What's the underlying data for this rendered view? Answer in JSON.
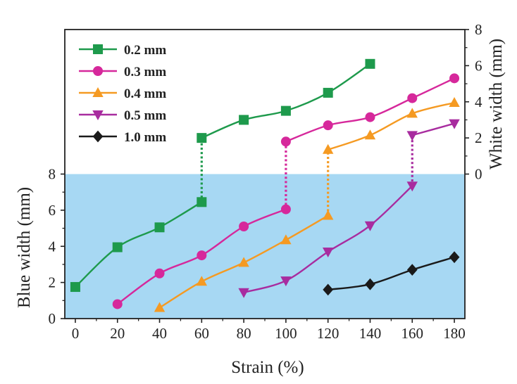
{
  "chart_data": {
    "type": "line",
    "xlabel": "Strain (%)",
    "ylabel_left": "Blue width (mm)",
    "ylabel_right": "White width (mm)",
    "xlim": [
      -5,
      185
    ],
    "ylim_left": [
      0,
      16
    ],
    "ylim_right": [
      -8,
      8
    ],
    "xticks": [
      0,
      20,
      40,
      60,
      80,
      100,
      120,
      140,
      160,
      180
    ],
    "yticks_left": [
      0,
      2,
      4,
      6,
      8
    ],
    "yticks_right": [
      0,
      2,
      4,
      6,
      8
    ],
    "blue_region_max": 8,
    "legend_position": "top-left",
    "series": [
      {
        "name": "0.2 mm",
        "color": "#1e9a4c",
        "marker": "square",
        "blue": {
          "x": [
            0,
            20,
            40,
            60
          ],
          "y": [
            1.75,
            3.95,
            5.05,
            6.45
          ]
        },
        "white": {
          "x": [
            60,
            80,
            100,
            120,
            140
          ],
          "y": [
            2.0,
            3.0,
            3.5,
            4.5,
            6.1
          ]
        },
        "transition_x": 60
      },
      {
        "name": "0.3 mm",
        "color": "#d6289b",
        "marker": "circle",
        "blue": {
          "x": [
            20,
            40,
            60,
            80,
            100
          ],
          "y": [
            0.8,
            2.5,
            3.5,
            5.1,
            6.05
          ]
        },
        "white": {
          "x": [
            100,
            120,
            140,
            160,
            180
          ],
          "y": [
            1.8,
            2.7,
            3.15,
            4.2,
            5.3
          ]
        },
        "transition_x": 100
      },
      {
        "name": "0.4 mm",
        "color": "#f59a22",
        "marker": "triangle-up",
        "blue": {
          "x": [
            40,
            60,
            80,
            100,
            120
          ],
          "y": [
            0.6,
            2.05,
            3.1,
            4.35,
            5.7
          ]
        },
        "white": {
          "x": [
            120,
            140,
            160,
            180
          ],
          "y": [
            1.35,
            2.15,
            3.35,
            3.95
          ]
        },
        "transition_x": 120
      },
      {
        "name": "0.5 mm",
        "color": "#a82c9f",
        "marker": "triangle-down",
        "blue": {
          "x": [
            80,
            100,
            120,
            140,
            160
          ],
          "y": [
            1.45,
            2.1,
            3.7,
            5.15,
            7.35
          ]
        },
        "white": {
          "x": [
            160,
            180
          ],
          "y": [
            2.15,
            2.8
          ]
        },
        "transition_x": 160
      },
      {
        "name": "1.0 mm",
        "color": "#1a1a1a",
        "marker": "diamond",
        "blue": {
          "x": [
            120,
            140,
            160,
            180
          ],
          "y": [
            1.6,
            1.9,
            2.7,
            3.4
          ]
        },
        "white": null,
        "transition_x": null
      }
    ]
  }
}
